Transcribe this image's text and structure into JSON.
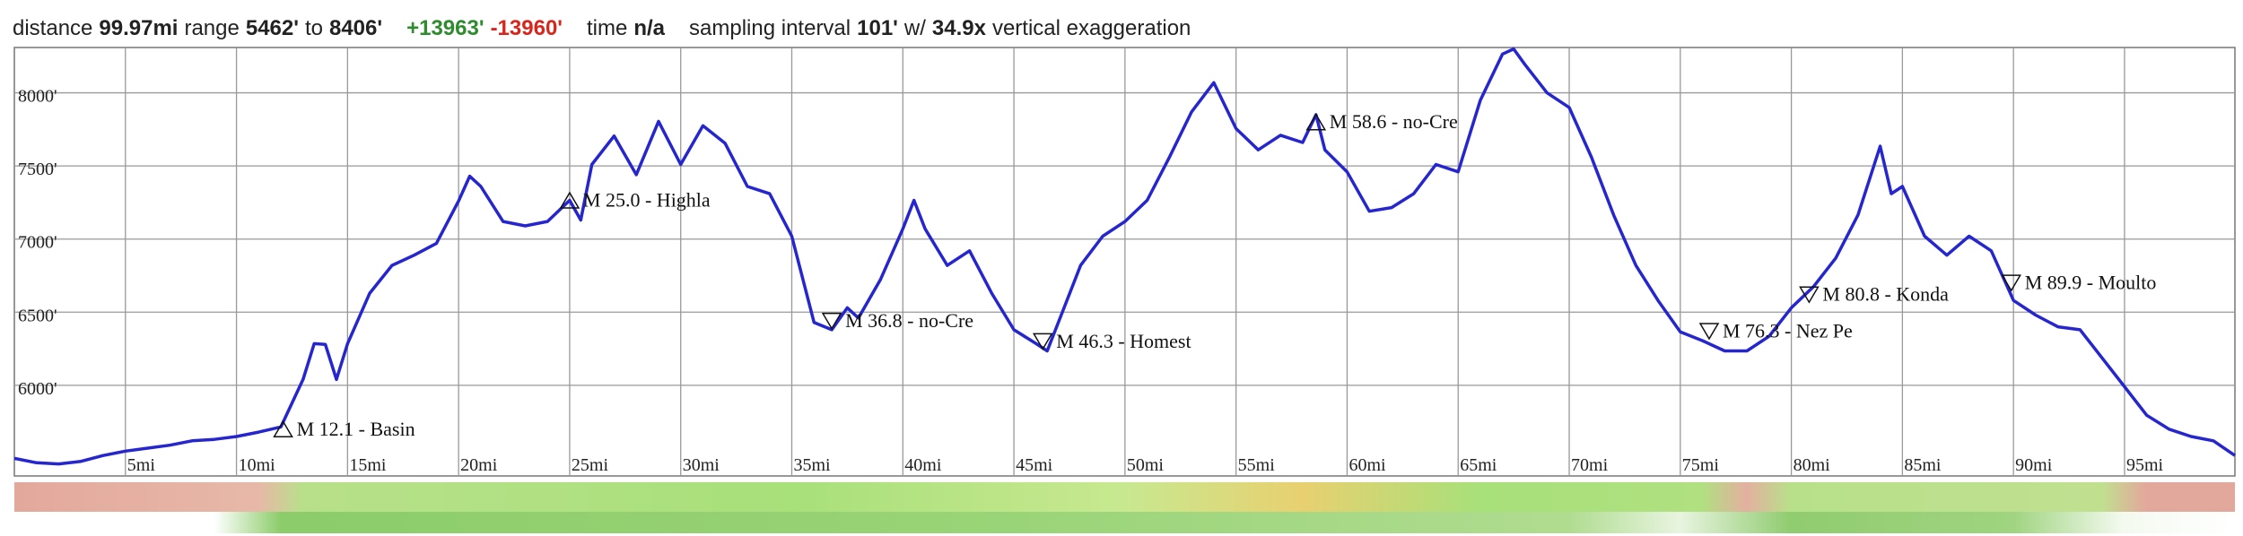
{
  "header": {
    "items": [
      {
        "text": "distance"
      },
      {
        "text": "99.97mi",
        "bold": true
      },
      {
        "text": "range"
      },
      {
        "text": "5462'",
        "bold": true
      },
      {
        "text": "to"
      },
      {
        "text": "8406'",
        "bold": true
      },
      {
        "text": "+13963'",
        "bold": true,
        "color": "#2e8b2e",
        "gap": true
      },
      {
        "text": "-13960'",
        "bold": true,
        "color": "#d8261c"
      },
      {
        "text": "time",
        "gap": true
      },
      {
        "text": "n/a",
        "bold": true
      },
      {
        "text": "sampling interval",
        "gap": true
      },
      {
        "text": "101'",
        "bold": true
      },
      {
        "text": "w/"
      },
      {
        "text": "34.9x",
        "bold": true
      },
      {
        "text": "vertical exaggeration"
      }
    ]
  },
  "chart_data": {
    "type": "line",
    "x": [
      0,
      1,
      2,
      3,
      4,
      5,
      6,
      7,
      8,
      9,
      10,
      11,
      12,
      13,
      13.5,
      14,
      14.5,
      15,
      16,
      17,
      18,
      19,
      20,
      20.5,
      21,
      22,
      23,
      24,
      25,
      25.5,
      26,
      27,
      28,
      29,
      30,
      31,
      32,
      33,
      34,
      35,
      36,
      36.8,
      37.5,
      38,
      39,
      40,
      40.5,
      41,
      42,
      43,
      44,
      45,
      46,
      46.5,
      47,
      48,
      49,
      50,
      51,
      52,
      53,
      54,
      55,
      56,
      57,
      58,
      58.6,
      59,
      60,
      61,
      62,
      63,
      64,
      65,
      66,
      67,
      67.5,
      68,
      69,
      70,
      71,
      72,
      73,
      74,
      75,
      76,
      77,
      78,
      79,
      80,
      81,
      82,
      83,
      84,
      84.5,
      85,
      86,
      87,
      88,
      89,
      90,
      91,
      92,
      93,
      94,
      95,
      96,
      97,
      98,
      99,
      99.97
    ],
    "series": [
      {
        "name": "elevation",
        "color": "#2626cf",
        "values": [
          5500,
          5470,
          5462,
          5480,
          5520,
          5550,
          5570,
          5590,
          5620,
          5630,
          5650,
          5680,
          5715,
          6040,
          6285,
          6280,
          6040,
          6285,
          6630,
          6820,
          6890,
          6970,
          7260,
          7430,
          7360,
          7120,
          7090,
          7120,
          7265,
          7130,
          7510,
          7705,
          7440,
          7805,
          7510,
          7775,
          7655,
          7360,
          7310,
          7020,
          6430,
          6380,
          6530,
          6460,
          6725,
          7070,
          7265,
          7070,
          6820,
          6920,
          6630,
          6380,
          6285,
          6235,
          6430,
          6820,
          7020,
          7120,
          7265,
          7560,
          7870,
          8070,
          7755,
          7610,
          7710,
          7660,
          7850,
          7610,
          7460,
          7190,
          7215,
          7310,
          7510,
          7460,
          7950,
          8265,
          8300,
          8195,
          8000,
          7900,
          7560,
          7165,
          6820,
          6580,
          6365,
          6305,
          6235,
          6235,
          6335,
          6530,
          6675,
          6870,
          7165,
          7635,
          7310,
          7360,
          7020,
          6890,
          7020,
          6920,
          6580,
          6480,
          6400,
          6380,
          6185,
          5990,
          5795,
          5700,
          5650,
          5620,
          5520
        ]
      }
    ],
    "xlim": [
      0,
      99.97
    ],
    "ylim": [
      5380,
      8310
    ],
    "xticks": [
      {
        "value": 5,
        "label": "5mi"
      },
      {
        "value": 10,
        "label": "10mi"
      },
      {
        "value": 15,
        "label": "15mi"
      },
      {
        "value": 20,
        "label": "20mi"
      },
      {
        "value": 25,
        "label": "25mi"
      },
      {
        "value": 30,
        "label": "30mi"
      },
      {
        "value": 35,
        "label": "35mi"
      },
      {
        "value": 40,
        "label": "40mi"
      },
      {
        "value": 45,
        "label": "45mi"
      },
      {
        "value": 50,
        "label": "50mi"
      },
      {
        "value": 55,
        "label": "55mi"
      },
      {
        "value": 60,
        "label": "60mi"
      },
      {
        "value": 65,
        "label": "65mi"
      },
      {
        "value": 70,
        "label": "70mi"
      },
      {
        "value": 75,
        "label": "75mi"
      },
      {
        "value": 80,
        "label": "80mi"
      },
      {
        "value": 85,
        "label": "85mi"
      },
      {
        "value": 90,
        "label": "90mi"
      },
      {
        "value": 95,
        "label": "95mi"
      }
    ],
    "yticks": [
      {
        "value": 6000,
        "label": "6000'"
      },
      {
        "value": 6500,
        "label": "6500'"
      },
      {
        "value": 7000,
        "label": "7000'"
      },
      {
        "value": 7500,
        "label": "7500'"
      },
      {
        "value": 8000,
        "label": "8000'"
      }
    ],
    "grid": true,
    "annotations": [
      {
        "label": "M 12.1 - Basin",
        "x": 12.1,
        "y": 5700,
        "direction": "up"
      },
      {
        "label": "M 25.0 - Highla",
        "x": 25.0,
        "y": 7265,
        "direction": "up"
      },
      {
        "label": "M 36.8 - no-Cre",
        "x": 36.8,
        "y": 6440,
        "direction": "down"
      },
      {
        "label": "M 46.3 - Homest",
        "x": 46.3,
        "y": 6300,
        "direction": "down"
      },
      {
        "label": "M 58.6 - no-Cre",
        "x": 58.6,
        "y": 7800,
        "direction": "up"
      },
      {
        "label": "M 76.3 - Nez Pe",
        "x": 76.3,
        "y": 6370,
        "direction": "down"
      },
      {
        "label": "M 80.8 - Konda",
        "x": 80.8,
        "y": 6620,
        "direction": "down"
      },
      {
        "label": "M 89.9 - Moulto",
        "x": 89.9,
        "y": 6700,
        "direction": "down"
      }
    ]
  }
}
